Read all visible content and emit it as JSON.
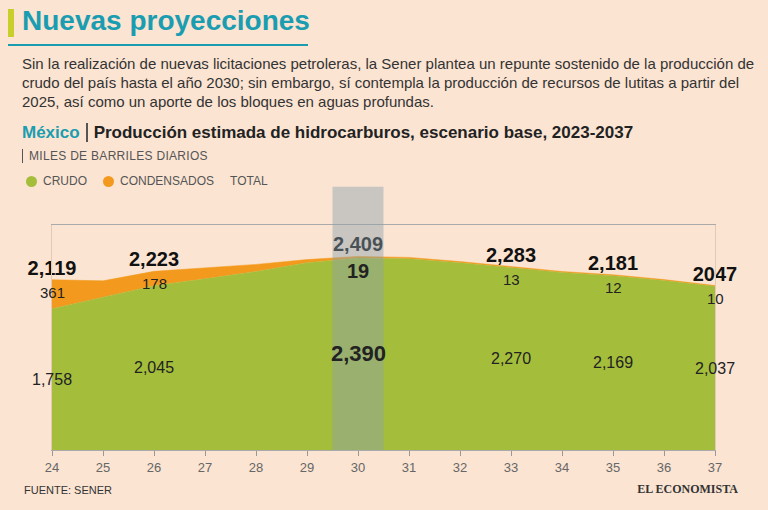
{
  "chart_data": {
    "type": "area",
    "title": "Nuevas proyecciones",
    "subtitle": "Sin la realización de nuevas licitaciones petroleras, la Sener plantea un repunte sostenido de la producción de crudo del país hasta el año 2030; sin embargo, sí contempla la producción de recursos de lutitas a partir del 2025, así como un aporte de los bloques en aguas profundas.",
    "heading": {
      "place": "México",
      "text": "Producción estimada de hidrocarburos, escenario base, 2023-2037"
    },
    "unit": "MILES DE BARRILES DIARIOS",
    "source": "FUENTE: SENER",
    "credit": "EL ECONOMISTA",
    "x": [
      24,
      25,
      26,
      27,
      28,
      29,
      30,
      31,
      32,
      33,
      34,
      35,
      36,
      37
    ],
    "xlim": [
      24,
      37
    ],
    "xticks": [
      24,
      25,
      26,
      27,
      28,
      29,
      30,
      31,
      32,
      33,
      34,
      35,
      36,
      37
    ],
    "ylim": [
      0,
      2800
    ],
    "tick_labels": "x",
    "grid": false,
    "stacked": true,
    "data_labels": true,
    "series": [
      {
        "name": "CRUDO",
        "color": "#a4be3c",
        "values": [
          1758,
          1900,
          2045,
          2130,
          2220,
          2330,
          2390,
          2380,
          2330,
          2270,
          2210,
          2169,
          2110,
          2037
        ],
        "value_labels": [
          "1,758",
          null,
          "2,045",
          null,
          null,
          null,
          "2,390",
          null,
          null,
          "2,270",
          null,
          "2,169",
          null,
          "2,037"
        ]
      },
      {
        "name": "CONDENSADOS",
        "color": "#f39a1e",
        "values": [
          361,
          205,
          178,
          140,
          90,
          40,
          19,
          17,
          15,
          13,
          12,
          12,
          11,
          10
        ],
        "value_labels": [
          "361",
          null,
          "178",
          null,
          null,
          null,
          "19",
          null,
          null,
          "13",
          null,
          "12",
          null,
          "10"
        ]
      },
      {
        "name": "TOTAL",
        "type": "text",
        "values": [
          2119,
          null,
          2223,
          null,
          null,
          null,
          2409,
          null,
          null,
          2283,
          null,
          2181,
          null,
          2047
        ],
        "value_labels": [
          "2,119",
          null,
          "2,223",
          null,
          null,
          null,
          "2,409",
          null,
          null,
          "2,283",
          null,
          "2,181",
          null,
          "2047"
        ]
      }
    ]
  }
}
